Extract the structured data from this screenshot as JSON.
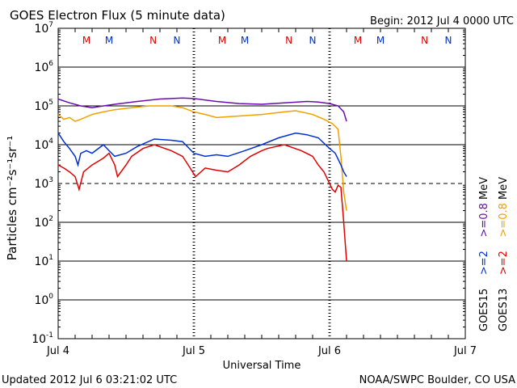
{
  "chart_data": {
    "type": "line",
    "title": "GOES Electron Flux (5 minute data)",
    "begin_label": "Begin: 2012 Jul 4 0000 UTC",
    "xlabel": "Universal Time",
    "ylabel": "Particles cm⁻²s⁻¹sr⁻¹",
    "x_unit": "hours since 2012 Jul 4 0000 UTC",
    "xlim": [
      0,
      72
    ],
    "x_ticks": [
      {
        "h": 0,
        "label": "Jul 4"
      },
      {
        "h": 24,
        "label": "Jul 5"
      },
      {
        "h": 48,
        "label": "Jul 6"
      },
      {
        "h": 72,
        "label": "Jul 7"
      }
    ],
    "y_scale": "log",
    "ylim": [
      0.1,
      10000000
    ],
    "y_ticks": [
      {
        "exp": "7"
      },
      {
        "exp": "6"
      },
      {
        "exp": "5"
      },
      {
        "exp": "4"
      },
      {
        "exp": "3"
      },
      {
        "exp": "2"
      },
      {
        "exp": "1"
      },
      {
        "exp": "0"
      },
      {
        "exp": "-1"
      }
    ],
    "threshold_line": 1000,
    "grid": true,
    "markers": [
      {
        "h": 5,
        "label": "M",
        "color": "#e00000"
      },
      {
        "h": 9,
        "label": "M",
        "color": "#0030d0"
      },
      {
        "h": 16.8,
        "label": "N",
        "color": "#e00000"
      },
      {
        "h": 21,
        "label": "N",
        "color": "#0030d0"
      },
      {
        "h": 29,
        "label": "M",
        "color": "#e00000"
      },
      {
        "h": 33,
        "label": "M",
        "color": "#0030d0"
      },
      {
        "h": 40.8,
        "label": "N",
        "color": "#e00000"
      },
      {
        "h": 45,
        "label": "N",
        "color": "#0030d0"
      },
      {
        "h": 53,
        "label": "M",
        "color": "#e00000"
      },
      {
        "h": 57,
        "label": "M",
        "color": "#0030d0"
      },
      {
        "h": 64.8,
        "label": "N",
        "color": "#e00000"
      },
      {
        "h": 69,
        "label": "N",
        "color": "#0030d0"
      }
    ],
    "series": [
      {
        "name": "GOES15 >=0.8 MeV",
        "color": "#6a0dad",
        "x": [
          0,
          2,
          4,
          6,
          8,
          10,
          14,
          18,
          22,
          24,
          28,
          32,
          36,
          40,
          44,
          46,
          48,
          49.5,
          50.5,
          51
        ],
        "y": [
          150000,
          120000,
          100000,
          90000,
          100000,
          110000,
          130000,
          150000,
          160000,
          155000,
          130000,
          115000,
          110000,
          120000,
          130000,
          125000,
          115000,
          100000,
          70000,
          40000
        ]
      },
      {
        "name": "GOES13 >=0.8 MeV",
        "color": "#f0a000",
        "x": [
          0,
          1,
          2,
          3,
          4,
          6,
          8,
          10,
          13,
          16,
          20,
          22,
          24,
          26,
          28,
          32,
          36,
          40,
          42,
          45,
          47,
          48.5,
          49.5,
          50,
          50.5,
          51
        ],
        "y": [
          60000,
          45000,
          50000,
          40000,
          45000,
          60000,
          70000,
          80000,
          90000,
          100000,
          100000,
          90000,
          70000,
          60000,
          50000,
          55000,
          60000,
          70000,
          75000,
          60000,
          45000,
          35000,
          25000,
          5000,
          600,
          200
        ]
      },
      {
        "name": "GOES15 >=2 MeV",
        "color": "#0030d0",
        "x": [
          0,
          1,
          2,
          3,
          3.5,
          4,
          5,
          6,
          8,
          9,
          10,
          12,
          14,
          17,
          20,
          22,
          24,
          26,
          28,
          30,
          33,
          36,
          39,
          42,
          44,
          46,
          48,
          49,
          50,
          50.5,
          51
        ],
        "y": [
          20000,
          12000,
          8000,
          5000,
          3000,
          6000,
          7000,
          6000,
          10000,
          7000,
          5000,
          6000,
          9000,
          14000,
          13000,
          12000,
          6000,
          5000,
          5500,
          5000,
          7000,
          10000,
          15000,
          20000,
          18000,
          15000,
          8000,
          6000,
          3000,
          2000,
          1500
        ]
      },
      {
        "name": "GOES13 >=2 MeV",
        "color": "#e00000",
        "x": [
          0,
          1,
          2,
          3,
          3.7,
          4.5,
          6,
          8,
          9,
          10,
          10.5,
          12,
          13,
          15,
          17,
          20,
          22,
          23,
          24.3,
          26,
          28,
          30,
          32,
          34,
          36,
          37,
          40,
          43,
          45,
          46,
          47,
          48,
          48.5,
          49,
          49.5,
          50,
          50.5,
          51
        ],
        "y": [
          3000,
          2500,
          2000,
          1500,
          700,
          2000,
          3000,
          4500,
          6000,
          3000,
          1500,
          3000,
          5000,
          8000,
          10000,
          7000,
          5000,
          3000,
          1500,
          2500,
          2200,
          2000,
          3000,
          5000,
          7000,
          8000,
          10000,
          7000,
          5000,
          3000,
          2000,
          1000,
          700,
          600,
          900,
          800,
          100,
          10
        ]
      }
    ],
    "legend": {
      "placement": "right-vertical",
      "satellites": [
        {
          "label": "GOES15",
          "ch2": ">=2",
          "ch08": ">=0.8",
          "ch2_color": "#0030d0",
          "ch08_color": "#6a0dad"
        },
        {
          "label": "GOES13",
          "ch2": ">=2",
          "ch08": ">=0.8",
          "ch2_color": "#e00000",
          "ch08_color": "#f0a000"
        }
      ],
      "unit": "MeV"
    }
  },
  "footer": {
    "updated": "Updated 2012 Jul  6 03:21:02 UTC",
    "source": "NOAA/SWPC Boulder, CO USA"
  }
}
